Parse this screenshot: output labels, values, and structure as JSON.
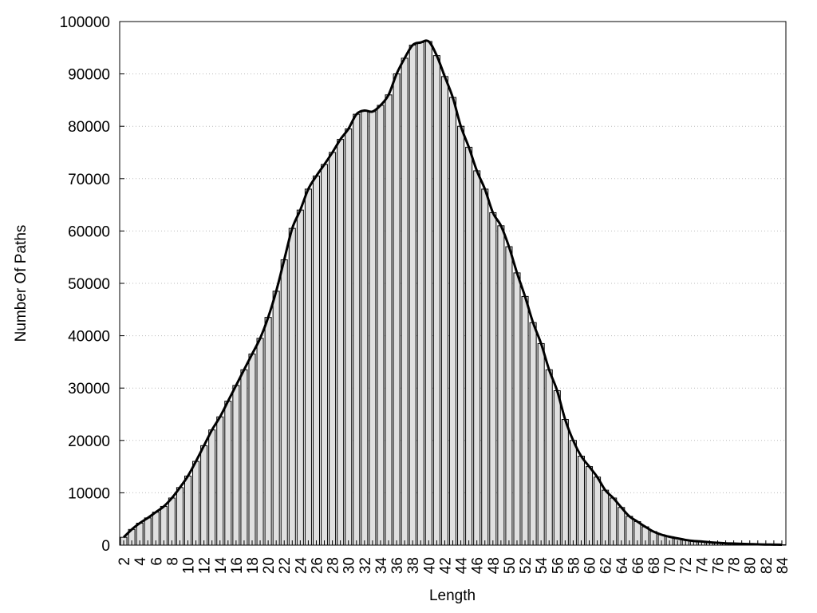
{
  "chart_data": {
    "type": "bar",
    "x_label": "Length",
    "y_label": "Number Of Paths",
    "categories": [
      "2",
      null,
      "4",
      null,
      "6",
      null,
      "8",
      null,
      "10",
      null,
      "12",
      null,
      "14",
      null,
      "16",
      null,
      "18",
      null,
      "20",
      null,
      "22",
      null,
      "24",
      null,
      "26",
      null,
      "28",
      null,
      "30",
      null,
      "32",
      null,
      "34",
      null,
      "36",
      null,
      "38",
      null,
      "40",
      null,
      "42",
      null,
      "44",
      null,
      "46",
      null,
      "48",
      null,
      "50",
      null,
      "52",
      null,
      "54",
      null,
      "56",
      null,
      "58",
      null,
      "60",
      null,
      "62",
      null,
      "64",
      null,
      "66",
      null,
      "68",
      null,
      "70",
      null,
      "72",
      null,
      "74",
      null,
      "76",
      null,
      "78",
      null,
      "80",
      null,
      "82",
      null,
      "84"
    ],
    "values": [
      1500,
      3000,
      4200,
      5200,
      6300,
      7400,
      9000,
      11000,
      13200,
      16000,
      19000,
      22000,
      24500,
      27500,
      30500,
      33500,
      36500,
      39500,
      43500,
      48500,
      54500,
      60500,
      64000,
      68000,
      70500,
      72700,
      75000,
      77500,
      79500,
      82300,
      83000,
      82800,
      84000,
      86000,
      90000,
      93000,
      95500,
      96000,
      96200,
      93500,
      89500,
      85500,
      80000,
      76000,
      71500,
      68000,
      63500,
      61000,
      57000,
      52000,
      47500,
      42500,
      38500,
      33500,
      29500,
      24000,
      20000,
      17000,
      15000,
      13000,
      10500,
      9000,
      7200,
      5500,
      4500,
      3500,
      2600,
      2000,
      1600,
      1300,
      1000,
      800,
      700,
      550,
      450,
      350,
      300,
      250,
      200,
      150,
      120,
      100,
      80
    ],
    "color": "#e0e0e0",
    "line_color": "#000000",
    "ylim": [
      0,
      100000
    ],
    "yticks": [
      0,
      10000,
      20000,
      30000,
      40000,
      50000,
      60000,
      70000,
      80000,
      90000,
      100000
    ],
    "grid": true
  }
}
